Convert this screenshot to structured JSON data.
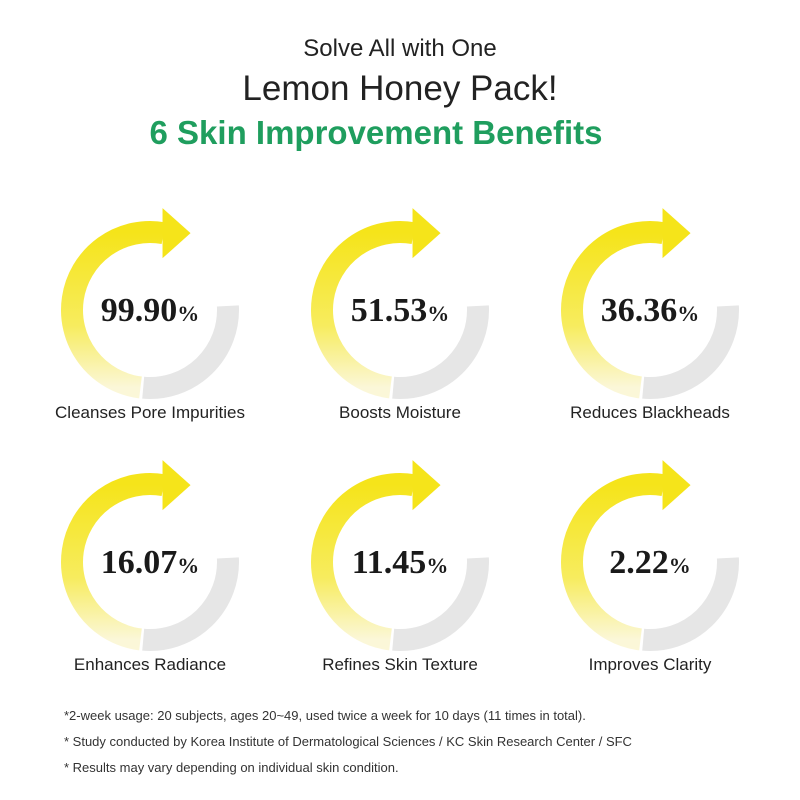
{
  "header": {
    "line1": "Solve All with One",
    "line2": "Lemon Honey Pack!",
    "line3": "6 Skin Improvement Benefits"
  },
  "benefits": [
    {
      "value": "99.90",
      "unit": "%",
      "label": "Cleanses Pore Impurities"
    },
    {
      "value": "51.53",
      "unit": "%",
      "label": "Boosts Moisture"
    },
    {
      "value": "36.36",
      "unit": "%",
      "label": "Reduces Blackheads"
    },
    {
      "value": "16.07",
      "unit": "%",
      "label": "Enhances Radiance"
    },
    {
      "value": "11.45",
      "unit": "%",
      "label": "Refines Skin Texture"
    },
    {
      "value": "2.22",
      "unit": "%",
      "label": "Improves Clarity"
    }
  ],
  "footnotes": [
    "*2-week usage: 20 subjects, ages 20~49, used twice a week for 10 days (11 times in total).",
    "* Study conducted by Korea Institute of Dermatological Sciences / KC Skin Research Center / SFC",
    "* Results may vary depending on individual skin condition."
  ]
}
